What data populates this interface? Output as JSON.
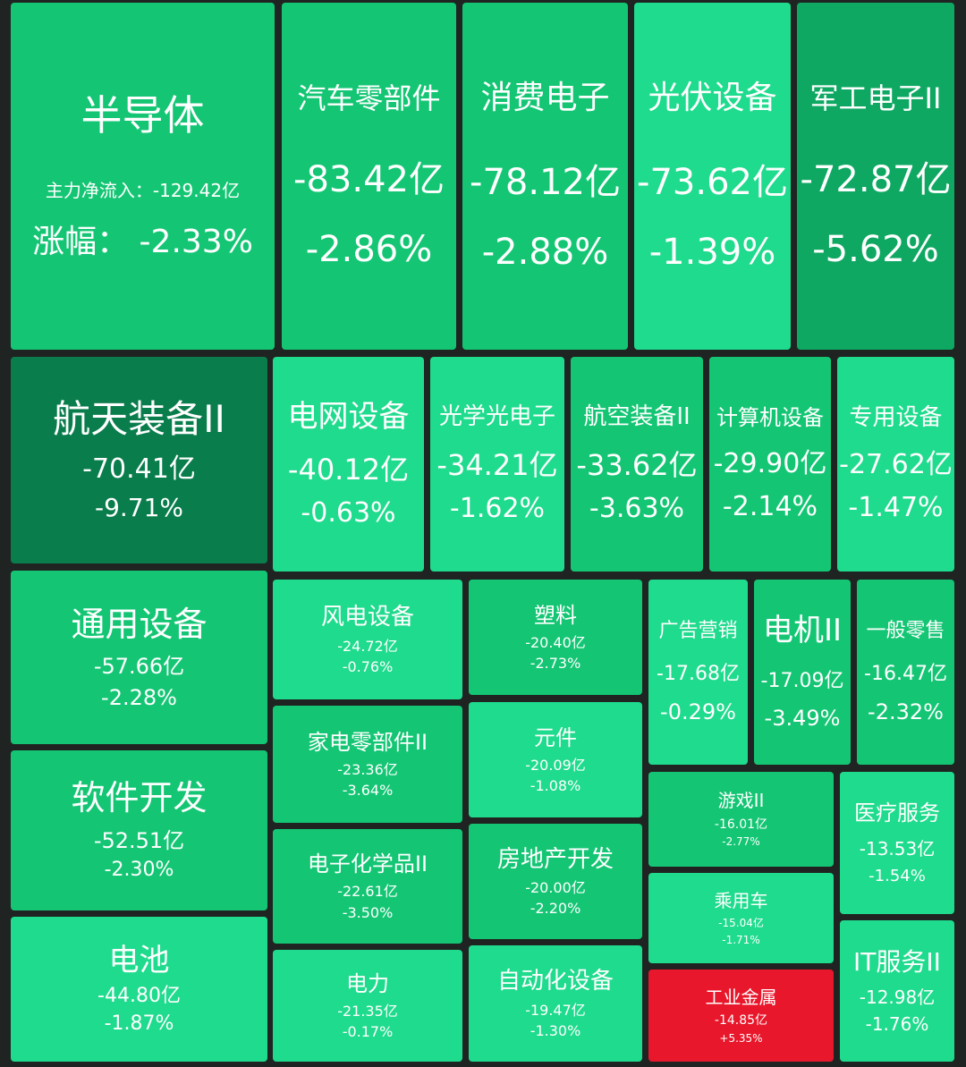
{
  "chart_data": {
    "type": "treemap",
    "labels": {
      "flow_label": "主力净流入：",
      "chg_label": "涨幅："
    },
    "colors": {
      "background": "#1f2422",
      "up": "#e8172b",
      "down_light": "#1fdb8d",
      "down_mid": "#14c674",
      "down_strong": "#0fa862",
      "down_deep": "#0a7d4c"
    },
    "sectors": [
      {
        "name": "半导体",
        "flow": "-129.42亿",
        "change": "-2.33%",
        "flow_value": -129.42,
        "change_value": -2.33
      },
      {
        "name": "汽车零部件",
        "flow": "-83.42亿",
        "change": "-2.86%",
        "flow_value": -83.42,
        "change_value": -2.86
      },
      {
        "name": "消费电子",
        "flow": "-78.12亿",
        "change": "-2.88%",
        "flow_value": -78.12,
        "change_value": -2.88
      },
      {
        "name": "光伏设备",
        "flow": "-73.62亿",
        "change": "-1.39%",
        "flow_value": -73.62,
        "change_value": -1.39
      },
      {
        "name": "军工电子II",
        "flow": "-72.87亿",
        "change": "-5.62%",
        "flow_value": -72.87,
        "change_value": -5.62
      },
      {
        "name": "航天装备II",
        "flow": "-70.41亿",
        "change": "-9.71%",
        "flow_value": -70.41,
        "change_value": -9.71
      },
      {
        "name": "电网设备",
        "flow": "-40.12亿",
        "change": "-0.63%",
        "flow_value": -40.12,
        "change_value": -0.63
      },
      {
        "name": "光学光电子",
        "flow": "-34.21亿",
        "change": "-1.62%",
        "flow_value": -34.21,
        "change_value": -1.62
      },
      {
        "name": "航空装备II",
        "flow": "-33.62亿",
        "change": "-3.63%",
        "flow_value": -33.62,
        "change_value": -3.63
      },
      {
        "name": "计算机设备",
        "flow": "-29.90亿",
        "change": "-2.14%",
        "flow_value": -29.9,
        "change_value": -2.14
      },
      {
        "name": "专用设备",
        "flow": "-27.62亿",
        "change": "-1.47%",
        "flow_value": -27.62,
        "change_value": -1.47
      },
      {
        "name": "通用设备",
        "flow": "-57.66亿",
        "change": "-2.28%",
        "flow_value": -57.66,
        "change_value": -2.28
      },
      {
        "name": "软件开发",
        "flow": "-52.51亿",
        "change": "-2.30%",
        "flow_value": -52.51,
        "change_value": -2.3
      },
      {
        "name": "电池",
        "flow": "-44.80亿",
        "change": "-1.87%",
        "flow_value": -44.8,
        "change_value": -1.87
      },
      {
        "name": "风电设备",
        "flow": "-24.72亿",
        "change": "-0.76%",
        "flow_value": -24.72,
        "change_value": -0.76
      },
      {
        "name": "家电零部件II",
        "flow": "-23.36亿",
        "change": "-3.64%",
        "flow_value": -23.36,
        "change_value": -3.64
      },
      {
        "name": "电子化学品II",
        "flow": "-22.61亿",
        "change": "-3.50%",
        "flow_value": -22.61,
        "change_value": -3.5
      },
      {
        "name": "电力",
        "flow": "-21.35亿",
        "change": "-0.17%",
        "flow_value": -21.35,
        "change_value": -0.17
      },
      {
        "name": "塑料",
        "flow": "-20.40亿",
        "change": "-2.73%",
        "flow_value": -20.4,
        "change_value": -2.73
      },
      {
        "name": "元件",
        "flow": "-20.09亿",
        "change": "-1.08%",
        "flow_value": -20.09,
        "change_value": -1.08
      },
      {
        "name": "房地产开发",
        "flow": "-20.00亿",
        "change": "-2.20%",
        "flow_value": -20.0,
        "change_value": -2.2
      },
      {
        "name": "自动化设备",
        "flow": "-19.47亿",
        "change": "-1.30%",
        "flow_value": -19.47,
        "change_value": -1.3
      },
      {
        "name": "广告营销",
        "flow": "-17.68亿",
        "change": "-0.29%",
        "flow_value": -17.68,
        "change_value": -0.29
      },
      {
        "name": "电机II",
        "flow": "-17.09亿",
        "change": "-3.49%",
        "flow_value": -17.09,
        "change_value": -3.49
      },
      {
        "name": "一般零售",
        "flow": "-16.47亿",
        "change": "-2.32%",
        "flow_value": -16.47,
        "change_value": -2.32
      },
      {
        "name": "游戏II",
        "flow": "-16.01亿",
        "change": "-2.77%",
        "flow_value": -16.01,
        "change_value": -2.77
      },
      {
        "name": "医疗服务",
        "flow": "-13.53亿",
        "change": "-1.54%",
        "flow_value": -13.53,
        "change_value": -1.54
      },
      {
        "name": "乘用车",
        "flow": "-15.04亿",
        "change": "-1.71%",
        "flow_value": -15.04,
        "change_value": -1.71
      },
      {
        "name": "工业金属",
        "flow": "-14.85亿",
        "change": "+5.35%",
        "flow_value": -14.85,
        "change_value": 5.35
      },
      {
        "name": "IT服务II",
        "flow": "-12.98亿",
        "change": "-1.76%",
        "flow_value": -12.98,
        "change_value": -1.76
      }
    ]
  }
}
